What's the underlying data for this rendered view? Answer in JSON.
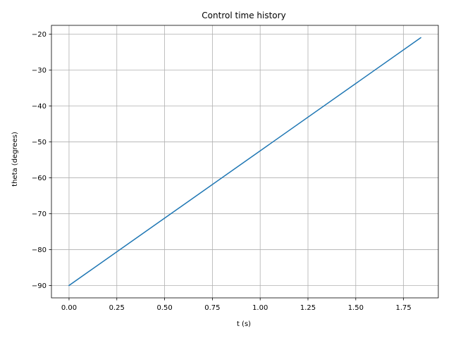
{
  "chart_data": {
    "type": "line",
    "title": "Control time history",
    "xlabel": "t (s)",
    "ylabel": "theta (degrees)",
    "xlim": [
      -0.092,
      1.932
    ],
    "ylim": [
      -93.45,
      -17.55
    ],
    "xticks": [
      0.0,
      0.25,
      0.5,
      0.75,
      1.0,
      1.25,
      1.5,
      1.75
    ],
    "xtick_labels": [
      "0.00",
      "0.25",
      "0.50",
      "0.75",
      "1.00",
      "1.25",
      "1.50",
      "1.75"
    ],
    "yticks": [
      -90,
      -80,
      -70,
      -60,
      -50,
      -40,
      -30,
      -20
    ],
    "ytick_labels": [
      "−90",
      "−80",
      "−70",
      "−60",
      "−50",
      "−40",
      "−30",
      "−20"
    ],
    "grid": true,
    "series": [
      {
        "color": "#1f77b4",
        "x": [
          0.0,
          1.84
        ],
        "y": [
          -90.0,
          -21.0
        ]
      }
    ]
  }
}
